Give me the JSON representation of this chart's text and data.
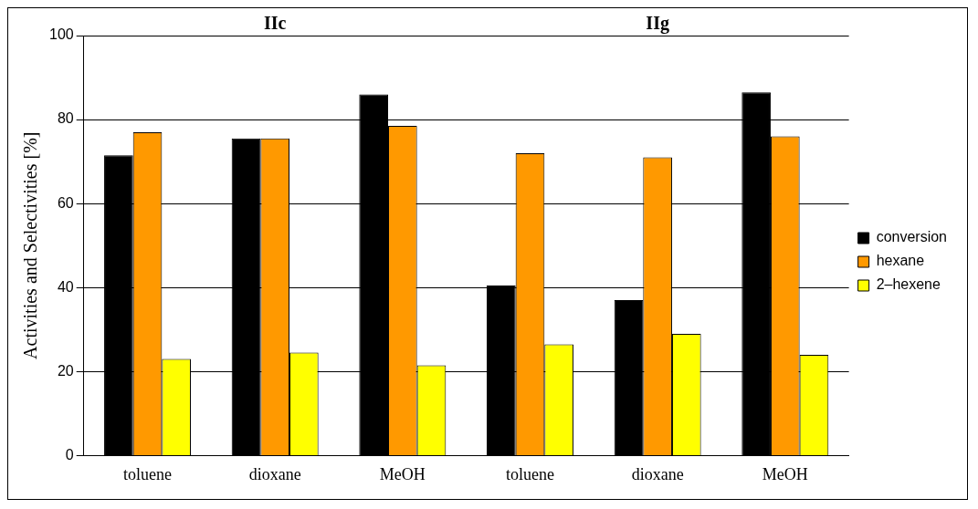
{
  "chart_data": {
    "type": "bar",
    "ylabel": "Activities and Selectivities [%]",
    "categories": [
      "toluene",
      "dioxane",
      "MeOH",
      "toluene",
      "dioxane",
      "MeOH"
    ],
    "series": [
      {
        "name": "conversion",
        "color": "#000000",
        "values": [
          71.5,
          75.5,
          86,
          40.5,
          37,
          86.5
        ]
      },
      {
        "name": "hexane",
        "color": "#ff9900",
        "values": [
          77,
          75.5,
          78.5,
          72,
          71,
          76
        ]
      },
      {
        "name": "2–hexene",
        "color": "#ffff00",
        "values": [
          23,
          24.5,
          21.5,
          26.5,
          29,
          24
        ]
      }
    ],
    "annotations": [
      "IIc",
      "IIg"
    ],
    "ylim": [
      0,
      100
    ],
    "yticks": [
      0,
      20,
      40,
      60,
      80,
      100
    ],
    "grid": "y",
    "legend": "right"
  }
}
